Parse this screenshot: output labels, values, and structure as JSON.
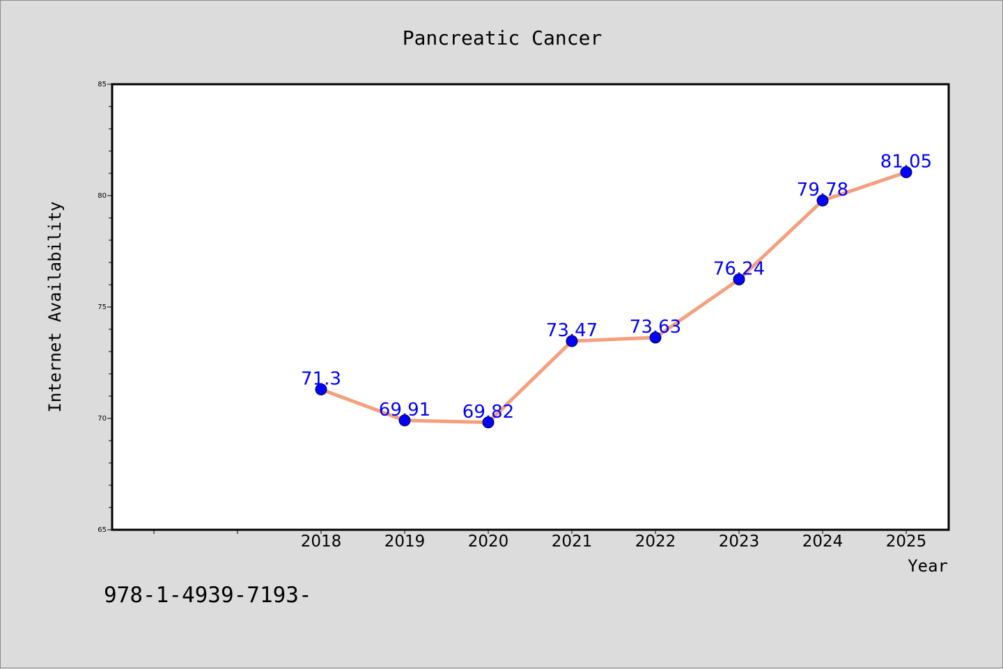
{
  "chart_data": {
    "type": "line",
    "title": "Pancreatic Cancer",
    "xlabel": "Year",
    "ylabel": "Internet Availability",
    "categories": [
      "2018",
      "2019",
      "2020",
      "2021",
      "2022",
      "2023",
      "2024",
      "2025"
    ],
    "series": [
      {
        "values": [
          71.3,
          69.91,
          69.82,
          73.47,
          73.63,
          76.24,
          79.78,
          81.05
        ]
      }
    ],
    "data_labels": [
      "71.3",
      "69.91",
      "69.82",
      "73.47",
      "73.63",
      "76.24",
      "79.78",
      "81.05"
    ],
    "ylim": [
      65,
      85
    ],
    "y_ticks": [
      "65",
      "70",
      "75",
      "80",
      "85"
    ],
    "grid": false,
    "colors": {
      "line": "#f4a07e",
      "marker": "#0000ff",
      "label": "#0000ff"
    }
  },
  "footer": {
    "text": "978-1-4939-7193-"
  }
}
